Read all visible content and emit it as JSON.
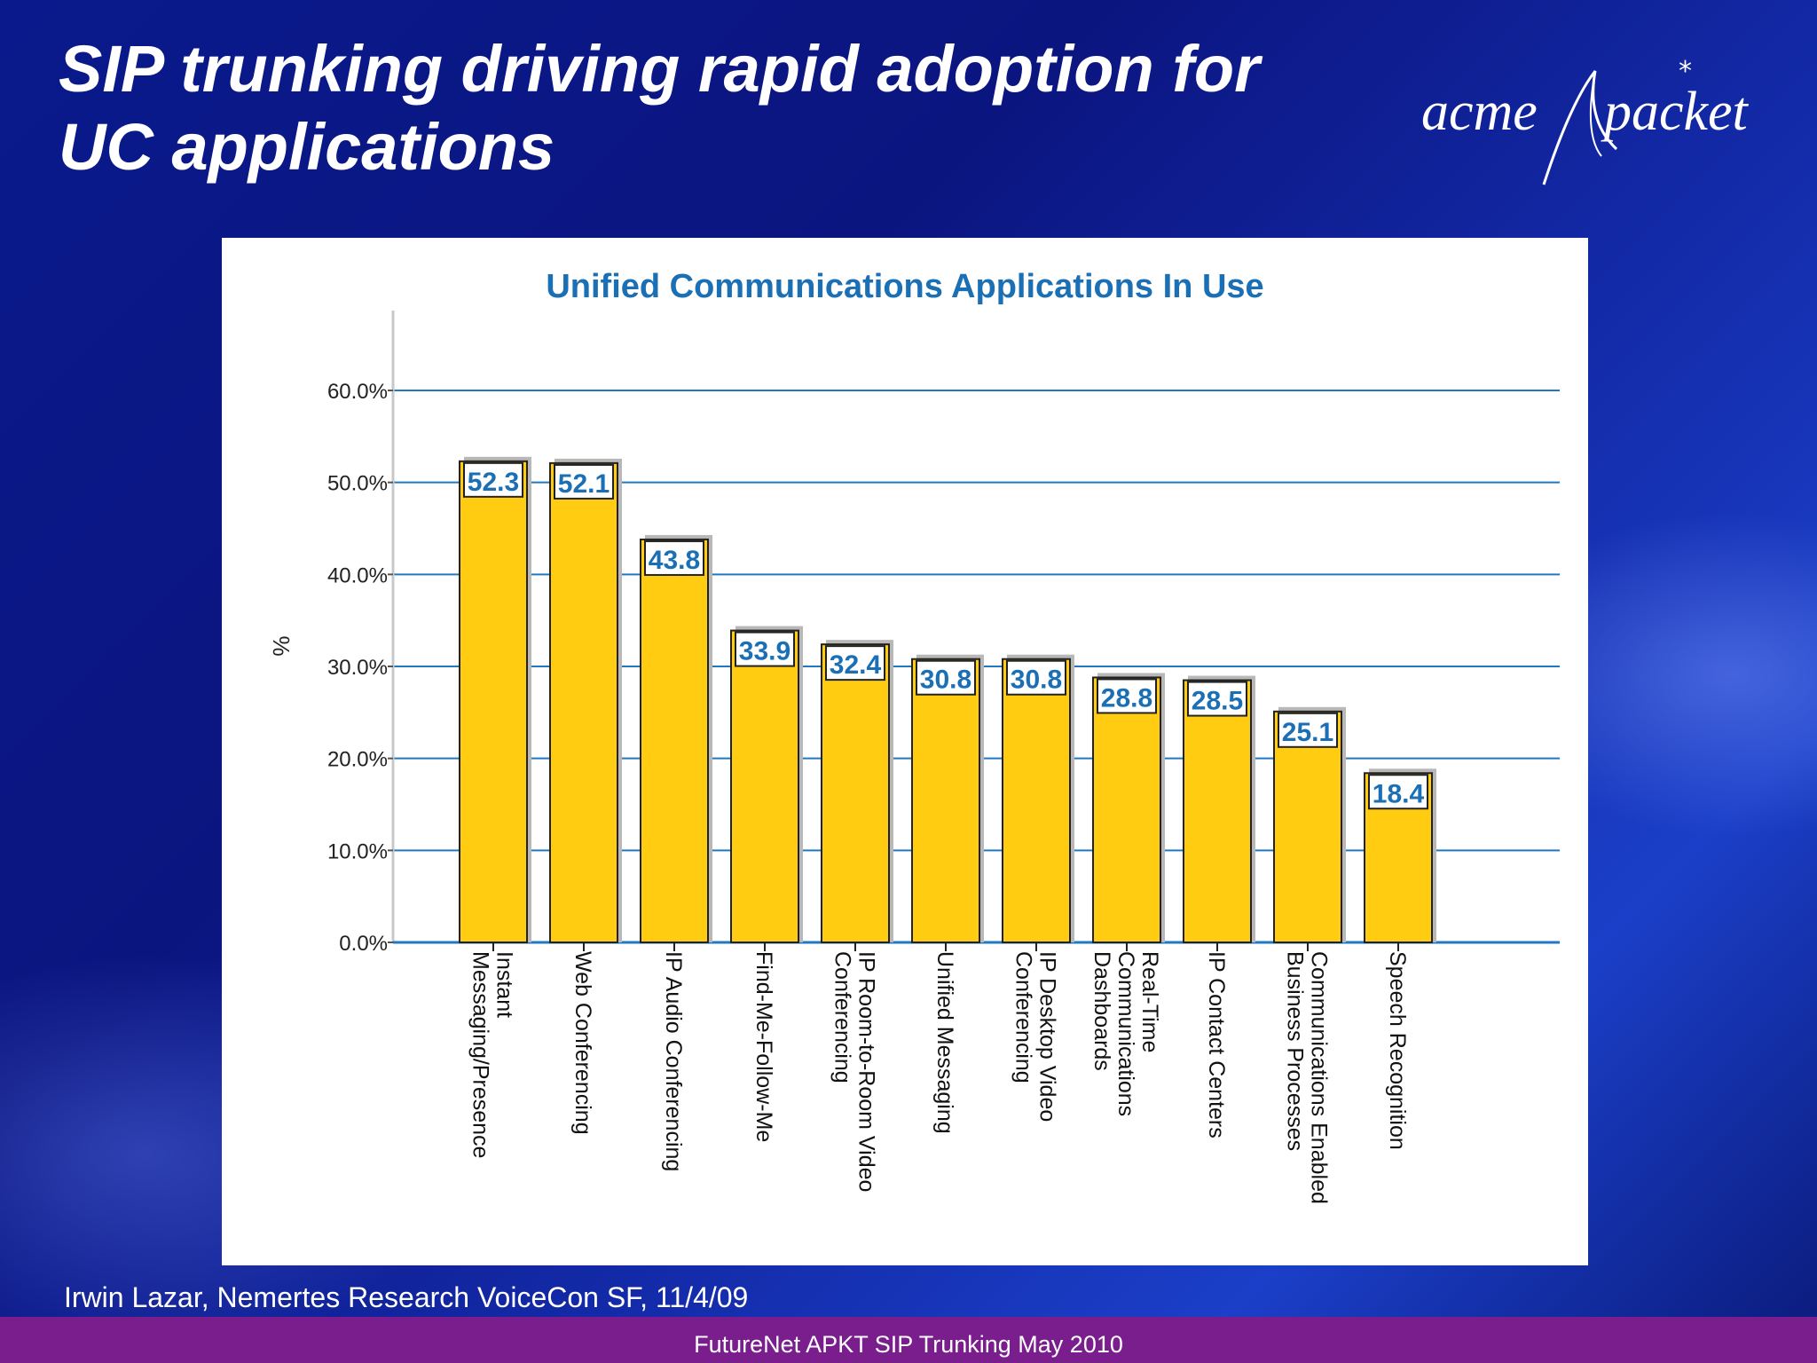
{
  "slide": {
    "title_line1": "SIP trunking driving rapid adoption for",
    "title_line2": "UC applications",
    "logo_left": "acme",
    "logo_right": "packet",
    "source": "Irwin Lazar, Nemertes Research VoiceCon SF, 11/4/09",
    "footer": "FutureNet APKT SIP Trunking May 2010"
  },
  "colors": {
    "bar_fill": "#FFCC11",
    "title_blue": "#1a6fb5",
    "grid_blue": "#1f78c1",
    "footer_purple": "#7a1e8e"
  },
  "chart_data": {
    "type": "bar",
    "title": "Unified Communications Applications In Use",
    "ylabel": "%",
    "xlabel": "",
    "ylim": [
      0,
      60
    ],
    "yticks": [
      0,
      10,
      20,
      30,
      40,
      50,
      60
    ],
    "ytick_labels": [
      "0.0%",
      "10.0%",
      "20.0%",
      "30.0%",
      "40.0%",
      "50.0%",
      "60.0%"
    ],
    "grid": true,
    "categories": [
      "Instant Messaging/Presence",
      "Web Conferencing",
      "IP Audio Conferencing",
      "Find-Me-Follow-Me",
      "IP Room-to-Room Video Conferencing",
      "Unified Messaging",
      "IP Desktop Video Conferencing",
      "Real-Time Communications Dashboards",
      "IP Contact Centers",
      "Communications Enabled Business Processes",
      "Speech Recognition"
    ],
    "category_lines": [
      [
        "Instant",
        "Messaging/Presence"
      ],
      [
        "Web Conferencing"
      ],
      [
        "IP Audio Conferencing"
      ],
      [
        "Find-Me-Follow-Me"
      ],
      [
        "IP Room-to-Room Video",
        "Conferencing"
      ],
      [
        "Unified Messaging"
      ],
      [
        "IP Desktop Video",
        "Conferencing"
      ],
      [
        "Real-Time",
        "Communications",
        "Dashboards"
      ],
      [
        "IP Contact Centers"
      ],
      [
        "Communications Enabled",
        "Business Processes"
      ],
      [
        "Speech Recognition"
      ]
    ],
    "values": [
      52.3,
      52.1,
      43.8,
      33.9,
      32.4,
      30.8,
      30.8,
      28.8,
      28.5,
      25.1,
      18.4
    ],
    "value_labels": [
      "52.3",
      "52.1",
      "43.8",
      "33.9",
      "32.4",
      "30.8",
      "30.8",
      "28.8",
      "28.5",
      "25.1",
      "18.4"
    ]
  }
}
